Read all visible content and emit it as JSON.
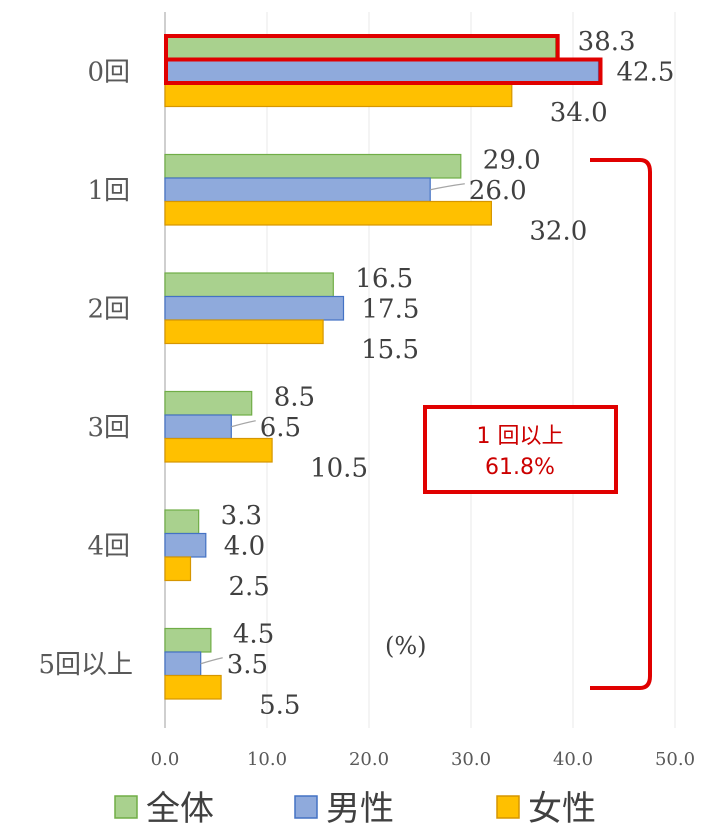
{
  "chart_data": {
    "type": "bar",
    "orientation": "horizontal",
    "categories": [
      "0回",
      "1回",
      "2回",
      "3回",
      "4回",
      "5回以上"
    ],
    "series": [
      {
        "name": "全体",
        "color": "#a9d18e",
        "values": [
          38.3,
          29.0,
          16.5,
          8.5,
          3.3,
          4.5
        ]
      },
      {
        "name": "男性",
        "color": "#8faadc",
        "values": [
          42.5,
          26.0,
          17.5,
          6.5,
          4.0,
          3.5
        ]
      },
      {
        "name": "女性",
        "color": "#ffc000",
        "values": [
          34.0,
          32.0,
          15.5,
          10.5,
          2.5,
          5.5
        ]
      }
    ],
    "value_labels": [
      [
        "38.3",
        "29.0",
        "16.5",
        "8.5",
        "3.3",
        "4.5"
      ],
      [
        "42.5",
        "26.0",
        "17.5",
        "6.5",
        "4.0",
        "3.5"
      ],
      [
        "34.0",
        "32.0",
        "15.5",
        "10.5",
        "2.5",
        "5.5"
      ]
    ],
    "xlim": [
      0,
      50
    ],
    "x_ticks": [
      "0.0",
      "10.0",
      "20.0",
      "30.0",
      "40.0",
      "50.0"
    ],
    "unit_label": "(%)",
    "grid": true,
    "legend_position": "bottom",
    "highlighted_bars": [
      "0回 全体",
      "0回 男性"
    ],
    "callout": {
      "line1": "1 回以上",
      "line2": "61.8%",
      "color": "#e00000",
      "bracket_categories": [
        "1回",
        "5回以上"
      ]
    }
  }
}
